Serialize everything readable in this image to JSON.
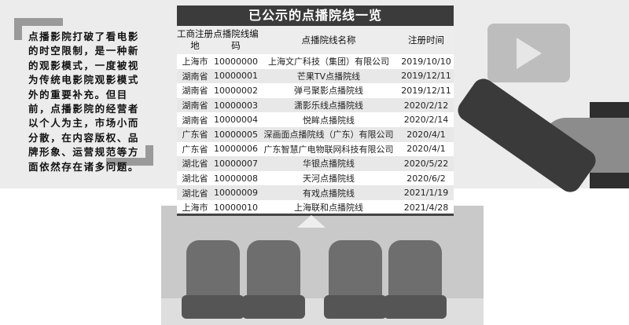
{
  "quote": "点播影院打破了看电影的时空限制，是一种新的观影模式，一度被视为传统电影院观影模式外的重要补充。但目前，点播影院的经营者以个人为主，市场小而分散，在内容版权、品牌形象、运营规范等方面依然存在诸多问题。",
  "table": {
    "title": "已公示的点播院线一览",
    "headers": [
      "工商注册地",
      "点播院线编码",
      "点播院线名称",
      "注册时间"
    ],
    "rows": [
      [
        "上海市",
        "10000000",
        "上海文广科技（集团）有限公司",
        "2019/10/10"
      ],
      [
        "湖南省",
        "10000001",
        "芒果TV点播院线",
        "2019/12/11"
      ],
      [
        "湖南省",
        "10000002",
        "弹弓聚影点播院线",
        "2019/12/11"
      ],
      [
        "湖南省",
        "10000003",
        "潇影乐线点播院线",
        "2020/2/12"
      ],
      [
        "湖南省",
        "10000004",
        "悦眸点播院线",
        "2020/2/14"
      ],
      [
        "广东省",
        "10000005",
        "深画面点播院线（广东）有限公司",
        "2020/4/1"
      ],
      [
        "广东省",
        "10000006",
        "广东智慧广电物联网科技有限公司",
        "2020/4/1"
      ],
      [
        "湖北省",
        "10000007",
        "华银点播院线",
        "2020/5/22"
      ],
      [
        "湖北省",
        "10000008",
        "天河点播院线",
        "2020/6/2"
      ],
      [
        "湖北省",
        "10000009",
        "有戏点播院线",
        "2021/1/19"
      ],
      [
        "上海市",
        "10000010",
        "上海联和点播院线",
        "2021/4/28"
      ]
    ]
  },
  "icons": [
    "play-icon",
    "remote-control-icon",
    "cinema-seat-icon"
  ]
}
